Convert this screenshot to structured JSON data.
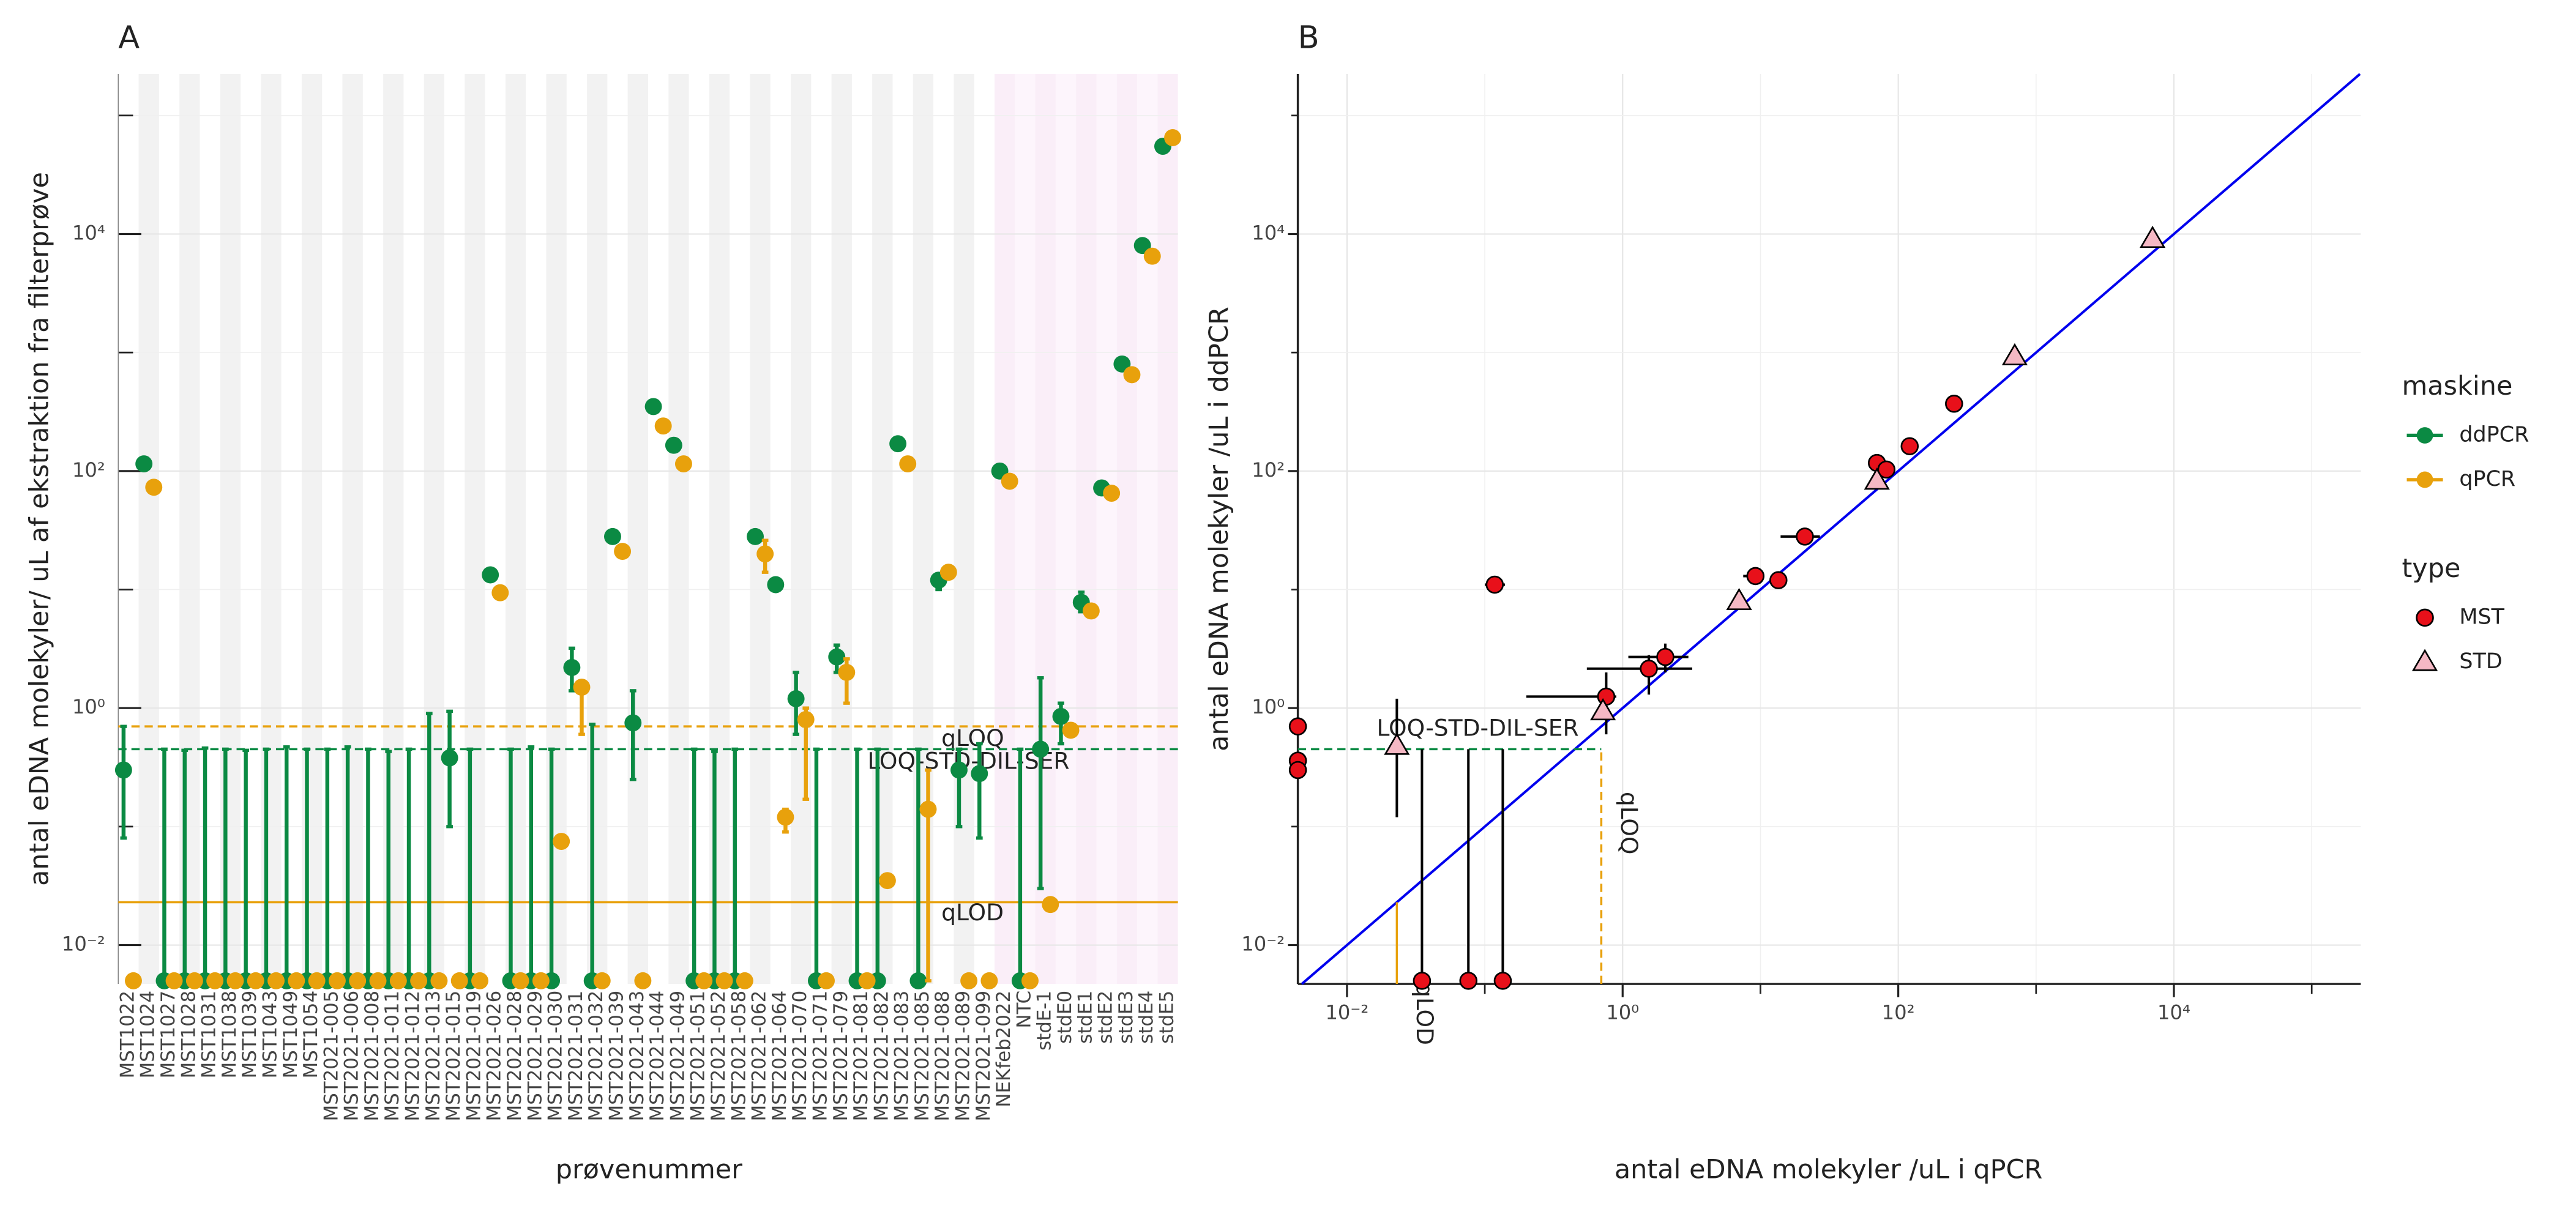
{
  "chart_data": [
    {
      "type": "dot",
      "title": "A",
      "x_label": "prøvenummer",
      "y_label": "antal eDNA molekyler/ uL af ekstraktion fra filterprøve",
      "log_y": true,
      "grid": true,
      "legend_title": "maskine",
      "categories": [
        "MST1022",
        "MST1024",
        "MST1027",
        "MST1028",
        "MST1031",
        "MST1038",
        "MST1039",
        "MST1043",
        "MST1049",
        "MST1054",
        "MST2021-005",
        "MST2021-006",
        "MST2021-008",
        "MST2021-011",
        "MST2021-012",
        "MST2021-013",
        "MST2021-015",
        "MST2021-019",
        "MST2021-026",
        "MST2021-028",
        "MST2021-029",
        "MST2021-030",
        "MST2021-031",
        "MST2021-032",
        "MST2021-039",
        "MST2021-043",
        "MST2021-044",
        "MST2021-049",
        "MST2021-051",
        "MST2021-052",
        "MST2021-058",
        "MST2021-062",
        "MST2021-064",
        "MST2021-070",
        "MST2021-071",
        "MST2021-079",
        "MST2021-081",
        "MST2021-082",
        "MST2021-083",
        "MST2021-085",
        "MST2021-088",
        "MST2021-089",
        "MST2021-099",
        "NEKfeb2022",
        "NTC",
        "stdE-1",
        "stdE0",
        "stdE1",
        "stdE2",
        "stdE3",
        "stdE4",
        "stdE5"
      ],
      "series": [
        {
          "name": "ddPCR",
          "color": "#0b8a43",
          "values": [
            0.3,
            115,
            0.005,
            0.005,
            0.005,
            0.005,
            0.005,
            0.005,
            0.005,
            0.005,
            0.005,
            0.005,
            0.005,
            0.005,
            0.005,
            0.005,
            0.38,
            0.005,
            13.3,
            0.005,
            0.005,
            0.005,
            2.2,
            0.005,
            28,
            0.75,
            350,
            165,
            0.005,
            0.005,
            0.005,
            28,
            11,
            1.2,
            0.005,
            2.7,
            0.005,
            0.005,
            170,
            0.005,
            12,
            0.3,
            0.28,
            100,
            0.005,
            0.45,
            0.85,
            7.8,
            72,
            800,
            8000,
            55000
          ],
          "error_low": [
            0.08,
            null,
            0.005,
            0.005,
            0.005,
            0.005,
            0.005,
            0.005,
            0.005,
            0.005,
            0.005,
            0.005,
            0.005,
            0.005,
            0.005,
            0.005,
            0.1,
            0.005,
            null,
            0.005,
            0.005,
            0.005,
            1.4,
            0.005,
            null,
            0.25,
            null,
            null,
            0.005,
            0.005,
            0.005,
            null,
            null,
            0.6,
            0.005,
            2,
            0.005,
            0.005,
            null,
            0.005,
            10,
            0.1,
            0.08,
            null,
            0.005,
            0.03,
            0.5,
            6.5,
            null,
            null,
            null,
            null
          ],
          "error_high": [
            0.7,
            null,
            0.45,
            0.44,
            0.46,
            0.45,
            0.44,
            0.45,
            0.47,
            0.45,
            0.45,
            0.47,
            0.45,
            0.43,
            0.45,
            0.9,
            0.94,
            0.45,
            null,
            0.45,
            0.47,
            0.45,
            3.2,
            0.73,
            null,
            1.4,
            null,
            null,
            0.45,
            0.43,
            0.45,
            null,
            null,
            2,
            0.45,
            3.4,
            0.45,
            0.45,
            null,
            0.45,
            13,
            0.45,
            0.5,
            null,
            0.45,
            1.8,
            1.1,
            9.5,
            null,
            null,
            null,
            null
          ]
        },
        {
          "name": "qPCR",
          "color": "#e8a10c",
          "values": [
            0.005,
            73,
            0.005,
            0.005,
            0.005,
            0.005,
            0.005,
            0.005,
            0.005,
            0.005,
            0.005,
            0.005,
            0.005,
            0.005,
            0.005,
            0.005,
            0.005,
            0.005,
            9.4,
            0.005,
            0.005,
            0.075,
            1.5,
            0.005,
            21,
            0.005,
            240,
            115,
            0.005,
            0.005,
            0.005,
            20,
            0.12,
            0.8,
            0.005,
            2,
            0.005,
            0.035,
            115,
            0.14,
            14,
            0.005,
            0.005,
            82,
            0.005,
            0.022,
            0.65,
            6.6,
            65,
            650,
            6500,
            65000
          ],
          "error_low": [
            null,
            null,
            null,
            null,
            null,
            null,
            null,
            null,
            null,
            null,
            null,
            null,
            null,
            null,
            null,
            null,
            null,
            null,
            null,
            null,
            null,
            null,
            0.6,
            null,
            null,
            null,
            null,
            null,
            null,
            null,
            null,
            14,
            0.09,
            0.17,
            null,
            1.1,
            null,
            null,
            null,
            0.005,
            null,
            null,
            null,
            null,
            null,
            null,
            null,
            null,
            null,
            null,
            null,
            null
          ],
          "error_high": [
            null,
            null,
            null,
            null,
            null,
            null,
            null,
            null,
            null,
            null,
            null,
            null,
            null,
            null,
            null,
            null,
            null,
            null,
            null,
            null,
            null,
            null,
            1.6,
            null,
            null,
            null,
            null,
            null,
            null,
            null,
            null,
            26,
            0.14,
            1,
            null,
            2.6,
            null,
            null,
            null,
            0.3,
            null,
            null,
            null,
            null,
            null,
            null,
            null,
            null,
            null,
            null,
            null,
            null
          ]
        }
      ],
      "reference_lines": [
        {
          "label": "qLOQ",
          "value": 0.7,
          "color": "#e8a10c",
          "dashed": true
        },
        {
          "label": "LOQ-STD-DIL-SER",
          "value": 0.45,
          "color": "#0b8a43",
          "dashed": true
        },
        {
          "label": "qLOD",
          "value": 0.023,
          "color": "#e8a10c",
          "dashed": false
        }
      ],
      "ylim": [
        0.0047,
        224000
      ],
      "yticks": [
        {
          "value": 0.01,
          "label": "10⁻²"
        },
        {
          "value": 1,
          "label": "10⁰"
        },
        {
          "value": 100,
          "label": "10²"
        },
        {
          "value": 10000,
          "label": "10⁴"
        }
      ],
      "yminor": [
        0.1,
        10,
        1000,
        100000
      ]
    },
    {
      "type": "scatter",
      "title": "B",
      "x_label": "antal eDNA molekyler /uL i qPCR",
      "y_label": "antal eDNA molekyler /uL i ddPCR",
      "log_x": true,
      "log_y": true,
      "grid": true,
      "legend_title": "type",
      "identity_line": {
        "color": "#0000ee"
      },
      "series": [
        {
          "name": "MST",
          "color": "#e8101a",
          "marker": "circle",
          "x": [
            0.0044,
            0.0044,
            0.0044,
            0.118,
            0.035,
            0.076,
            0.135,
            0.76,
            1.55,
            2.04,
            9.2,
            13.5,
            21,
            70,
            82,
            121,
            254
          ],
          "values": [
            0.7,
            0.36,
            0.3,
            11,
            0.005,
            0.005,
            0.005,
            1.25,
            2.15,
            2.7,
            13,
            12,
            28,
            117,
            103,
            162,
            370
          ],
          "x_low": [
            null,
            null,
            null,
            0.1,
            null,
            null,
            null,
            0.2,
            0.55,
            1.1,
            7.5,
            null,
            14,
            null,
            null,
            null,
            null
          ],
          "x_high": [
            null,
            null,
            null,
            0.14,
            null,
            null,
            null,
            0.9,
            3.2,
            3,
            10.5,
            null,
            27,
            null,
            null,
            null,
            null
          ],
          "y_low": [
            null,
            null,
            null,
            null,
            0.005,
            0.005,
            0.005,
            0.6,
            1.3,
            2,
            null,
            null,
            null,
            null,
            null,
            null,
            null
          ],
          "y_high": [
            null,
            null,
            null,
            null,
            0.45,
            0.45,
            0.45,
            2,
            2.8,
            3.5,
            null,
            null,
            null,
            null,
            null,
            null,
            null
          ]
        },
        {
          "name": "STD",
          "color": "#f5b8c4",
          "marker": "triangle",
          "x": [
            0.023,
            0.72,
            7,
            70,
            700,
            7000
          ],
          "values": [
            0.48,
            0.94,
            8,
            83,
            930,
            9100
          ],
          "x_low": [
            null,
            null,
            null,
            null,
            null,
            null
          ],
          "x_high": [
            null,
            null,
            null,
            null,
            null,
            null
          ],
          "y_low": [
            0.12,
            null,
            null,
            null,
            null,
            null
          ],
          "y_high": [
            1.2,
            null,
            null,
            null,
            null,
            null
          ]
        }
      ],
      "reference_lines": [
        {
          "label": "LOQ-STD-DIL-SER",
          "axis": "y",
          "value": 0.45,
          "end": 0.7,
          "color": "#0b8a43",
          "dashed": true
        },
        {
          "label": "qLOQ",
          "axis": "x",
          "value": 0.7,
          "end": 0.45,
          "color": "#e8a10c",
          "dashed": true
        },
        {
          "label": "qLOD",
          "axis": "x",
          "value": 0.023,
          "end": 0.023,
          "color": "#e8a10c",
          "dashed": false
        }
      ],
      "xlim": [
        0.0044,
        227000
      ],
      "xticks": [
        {
          "value": 0.01,
          "label": "10⁻²"
        },
        {
          "value": 1,
          "label": "10⁰"
        },
        {
          "value": 100,
          "label": "10²"
        },
        {
          "value": 10000,
          "label": "10⁴"
        }
      ],
      "xminor": [
        0.1,
        10,
        1000,
        100000
      ],
      "ylim": [
        0.0047,
        224000
      ],
      "yticks": [
        {
          "value": 0.01,
          "label": "10⁻²"
        },
        {
          "value": 1,
          "label": "10⁰"
        },
        {
          "value": 100,
          "label": "10²"
        },
        {
          "value": 10000,
          "label": "10⁴"
        }
      ],
      "yminor": [
        0.1,
        10,
        1000,
        100000
      ]
    }
  ]
}
